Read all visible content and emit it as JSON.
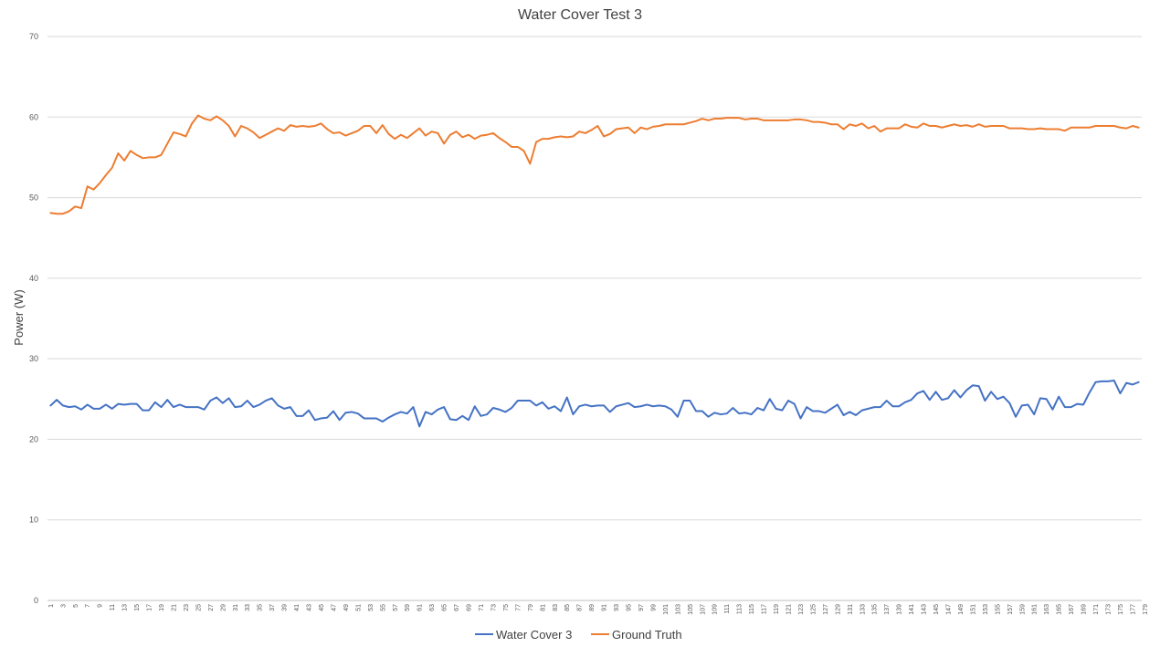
{
  "chart_data": {
    "type": "line",
    "title": "Water Cover Test 3",
    "ylabel": "Power (W)",
    "xlabel": "",
    "ylim": [
      0,
      70
    ],
    "yticks": [
      0,
      10,
      20,
      30,
      40,
      50,
      60,
      70
    ],
    "x_start": 1,
    "x_end": 178,
    "x_tick_step": 2,
    "grid": "horizontal",
    "legend": "bottom",
    "series": [
      {
        "name": "Water Cover 3",
        "color": "#4472c4",
        "values": [
          24.2,
          24.9,
          24.2,
          24.0,
          24.1,
          23.7,
          24.3,
          23.8,
          23.8,
          24.3,
          23.8,
          24.4,
          24.3,
          24.4,
          24.4,
          23.6,
          23.6,
          24.6,
          24.0,
          24.9,
          24.0,
          24.3,
          24.0,
          24.0,
          24.0,
          23.7,
          24.8,
          25.2,
          24.5,
          25.1,
          24.0,
          24.1,
          24.8,
          24.0,
          24.3,
          24.8,
          25.1,
          24.2,
          23.8,
          24.0,
          22.9,
          22.9,
          23.6,
          22.4,
          22.6,
          22.7,
          23.5,
          22.4,
          23.3,
          23.4,
          23.2,
          22.6,
          22.6,
          22.6,
          22.2,
          22.7,
          23.1,
          23.4,
          23.2,
          24.0,
          21.6,
          23.4,
          23.1,
          23.7,
          24.0,
          22.5,
          22.4,
          22.9,
          22.4,
          24.1,
          22.9,
          23.1,
          23.9,
          23.7,
          23.4,
          23.9,
          24.8,
          24.8,
          24.8,
          24.2,
          24.6,
          23.8,
          24.1,
          23.5,
          25.2,
          23.1,
          24.1,
          24.3,
          24.1,
          24.2,
          24.2,
          23.4,
          24.1,
          24.3,
          24.5,
          24.0,
          24.1,
          24.3,
          24.1,
          24.2,
          24.1,
          23.7,
          22.8,
          24.8,
          24.8,
          23.5,
          23.5,
          22.8,
          23.3,
          23.1,
          23.2,
          23.9,
          23.2,
          23.3,
          23.1,
          23.9,
          23.6,
          25.0,
          23.8,
          23.6,
          24.8,
          24.4,
          22.6,
          24.0,
          23.5,
          23.5,
          23.3,
          23.8,
          24.3,
          23.0,
          23.4,
          23.0,
          23.6,
          23.8,
          24.0,
          24.0,
          24.8,
          24.1,
          24.1,
          24.6,
          24.9,
          25.7,
          26.0,
          24.9,
          25.9,
          24.9,
          25.1,
          26.1,
          25.2,
          26.1,
          26.7,
          26.6,
          24.8,
          25.9,
          25.0,
          25.3,
          24.5,
          22.8,
          24.2,
          24.3,
          23.1,
          25.1,
          25.0,
          23.7,
          25.3,
          24.0,
          24.0,
          24.4,
          24.3,
          25.8,
          27.1,
          27.2,
          27.2,
          27.3,
          25.7,
          27.0,
          26.8,
          27.1
        ]
      },
      {
        "name": "Ground Truth",
        "color": "#ed7d31",
        "values": [
          48.1,
          48.0,
          48.0,
          48.3,
          48.9,
          48.7,
          51.4,
          51.0,
          51.8,
          52.8,
          53.7,
          55.5,
          54.6,
          55.8,
          55.3,
          54.9,
          55.0,
          55.0,
          55.3,
          56.7,
          58.1,
          57.9,
          57.6,
          59.2,
          60.2,
          59.8,
          59.6,
          60.1,
          59.6,
          58.9,
          57.6,
          58.9,
          58.6,
          58.1,
          57.4,
          57.8,
          58.2,
          58.6,
          58.3,
          59.0,
          58.8,
          58.9,
          58.8,
          58.9,
          59.2,
          58.5,
          58.0,
          58.1,
          57.7,
          58.0,
          58.3,
          58.9,
          58.9,
          58.0,
          59.0,
          57.9,
          57.3,
          57.8,
          57.4,
          58.0,
          58.6,
          57.7,
          58.2,
          58.0,
          56.7,
          57.8,
          58.2,
          57.5,
          57.8,
          57.3,
          57.7,
          57.8,
          58.0,
          57.4,
          56.9,
          56.3,
          56.3,
          55.8,
          54.2,
          56.9,
          57.3,
          57.3,
          57.5,
          57.6,
          57.5,
          57.6,
          58.2,
          58.0,
          58.4,
          58.9,
          57.6,
          57.9,
          58.5,
          58.6,
          58.7,
          58.0,
          58.7,
          58.5,
          58.8,
          58.9,
          59.1,
          59.1,
          59.1,
          59.1,
          59.3,
          59.5,
          59.8,
          59.6,
          59.8,
          59.8,
          59.9,
          59.9,
          59.9,
          59.7,
          59.8,
          59.8,
          59.6,
          59.6,
          59.6,
          59.6,
          59.6,
          59.7,
          59.7,
          59.6,
          59.4,
          59.4,
          59.3,
          59.1,
          59.1,
          58.5,
          59.1,
          58.9,
          59.2,
          58.6,
          58.9,
          58.2,
          58.6,
          58.6,
          58.6,
          59.1,
          58.8,
          58.7,
          59.2,
          58.9,
          58.9,
          58.7,
          58.9,
          59.1,
          58.9,
          59.0,
          58.8,
          59.1,
          58.8,
          58.9,
          58.9,
          58.9,
          58.6,
          58.6,
          58.6,
          58.5,
          58.5,
          58.6,
          58.5,
          58.5,
          58.5,
          58.3,
          58.7,
          58.7,
          58.7,
          58.7,
          58.9,
          58.9,
          58.9,
          58.9,
          58.7,
          58.6,
          58.9,
          58.7
        ]
      }
    ]
  }
}
